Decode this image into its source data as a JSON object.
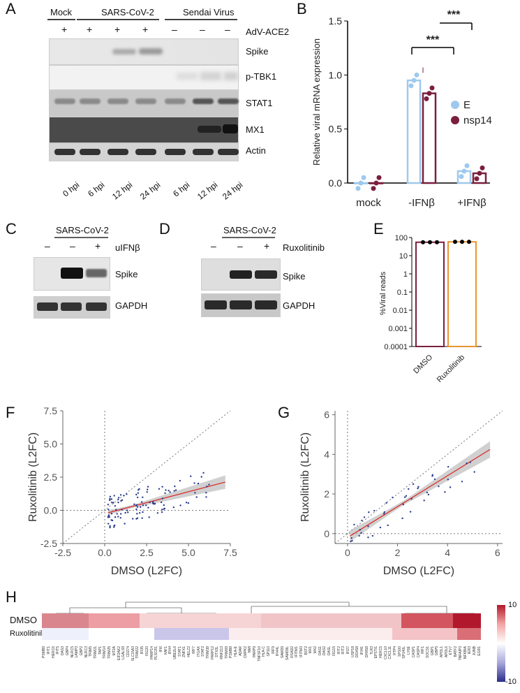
{
  "panels": {
    "A": {
      "letter": "A",
      "groups": [
        "Mock",
        "SARS-CoV-2",
        "Sendai Virus"
      ],
      "adv_label": "AdV-ACE2",
      "adv_marks": [
        "+",
        "+",
        "+",
        "+",
        "–",
        "–",
        "–"
      ],
      "bands": [
        "Spike",
        "p-TBK1",
        "STAT1",
        "MX1",
        "Actin"
      ],
      "timepoints": [
        "0 hpi",
        "6 hpi",
        "12 hpi",
        "24 hpi",
        "6 hpi",
        "12 hpi",
        "24 hpi"
      ]
    },
    "B": {
      "letter": "B",
      "chart_data": {
        "type": "bar",
        "categories": [
          "mock",
          "-IFNβ",
          "+IFNβ"
        ],
        "series": [
          {
            "name": "E",
            "values": [
              0.0,
              0.95,
              0.11
            ],
            "color": "#9ec9ee"
          },
          {
            "name": "nsp14",
            "values": [
              0.0,
              0.83,
              0.09
            ],
            "color": "#7a1f3d"
          }
        ],
        "ylabel": "Relative viral mRNA expression",
        "ylim": [
          0,
          1.5
        ],
        "yticks": [
          "0.0",
          "0.5",
          "1.0",
          "1.5"
        ],
        "significance": [
          "***",
          "***"
        ],
        "legend": "right"
      }
    },
    "C": {
      "letter": "C",
      "group": "SARS-CoV-2",
      "marks": [
        "–",
        "–",
        "+"
      ],
      "treatment": "uIFNβ",
      "bands": [
        "Spike",
        "GAPDH"
      ]
    },
    "D": {
      "letter": "D",
      "group": "SARS-CoV-2",
      "marks": [
        "–",
        "–",
        "+"
      ],
      "treatment": "Ruxolitinib",
      "bands": [
        "Spike",
        "GAPDH"
      ]
    },
    "E": {
      "letter": "E",
      "chart_data": {
        "type": "bar",
        "categories": [
          "DMSO",
          "Ruxolitinib"
        ],
        "values": [
          55,
          58
        ],
        "ylabel": "%Viral reads",
        "yscale": "log",
        "ylim": [
          0.0001,
          100
        ],
        "yticks": [
          "100",
          "10",
          "1",
          "0.1",
          "0.01",
          "0.001",
          "0.0001"
        ],
        "colors": [
          "#7a1f3d",
          "#e8962e"
        ]
      }
    },
    "F": {
      "letter": "F",
      "chart_data": {
        "type": "scatter",
        "xlabel": "DMSO (L2FC)",
        "ylabel": "Ruxolitinib (L2FC)",
        "xlim": [
          -2.5,
          7.5
        ],
        "ylim": [
          -2.5,
          7.5
        ],
        "xticks": [
          "-2.5",
          "0.0",
          "2.5",
          "5.0",
          "7.5"
        ],
        "yticks": [
          "-2.5",
          "0.0",
          "2.5",
          "5.0",
          "7.5"
        ],
        "fit": {
          "intercept": -0.25,
          "slope": 0.33
        }
      }
    },
    "G": {
      "letter": "G",
      "chart_data": {
        "type": "scatter",
        "xlabel": "DMSO (L2FC)",
        "ylabel": "Ruxolitinib (L2FC)",
        "xlim": [
          -0.5,
          6.2
        ],
        "ylim": [
          -0.5,
          6.2
        ],
        "xticks": [
          "0",
          "2",
          "4",
          "6"
        ],
        "yticks": [
          "0",
          "2",
          "4",
          "6"
        ],
        "fit": {
          "intercept": -0.2,
          "slope": 0.78
        }
      }
    },
    "H": {
      "letter": "H",
      "chart_data": {
        "type": "heatmap",
        "rows": [
          "DMSO",
          "Ruxolitinib"
        ],
        "colorbar": {
          "max": "10",
          "min": "-10"
        },
        "genes": [
          "PSMB9",
          "IFIT1",
          "HERC6",
          "IFIT5",
          "OAS3",
          "GBP4",
          "NLRC5",
          "LAMP3",
          "GBP2",
          "NLRC3",
          "TRIM5",
          "TRIM21",
          "TAP1",
          "TRIM14",
          "TRIM25",
          "MT2A",
          "EIF2AK2",
          "LGALS9",
          "CD274",
          "SLC15A3",
          "TRIM22",
          "IFI35",
          "ISG20",
          "PARP14",
          "PLSCR1",
          "IFI6",
          "XAF1",
          "IFI44",
          "UBE2L6",
          "STAT1",
          "ZNFX1",
          "HELZ2",
          "IRF7",
          "ITGAX",
          "STAT2",
          "TRIM38",
          "PARP12",
          "DTX3L",
          "RNF213",
          "TRIM69",
          "PSMB8",
          "HLA-E",
          "ADAR",
          "CMPK2",
          "NMI",
          "PARP9",
          "TNFSF10",
          "HLA-C",
          "SP110",
          "IRF9",
          "IFI44L",
          "SAMD9",
          "SAMD9L",
          "RSAD2",
          "IFITM1",
          "IFITM3",
          "BST2",
          "MX1",
          "MX2",
          "OAS1",
          "OAS2",
          "OASL",
          "ISG15",
          "IFIT2",
          "IFIT3",
          "IFI27",
          "USP18",
          "DDX58",
          "IFIH1",
          "DHX58",
          "TLR3",
          "EPSTI1",
          "HERC5",
          "CXCL10",
          "CXCL11",
          "RTP4",
          "SP100",
          "SP140L",
          "LY6E",
          "CASP1",
          "CASP4",
          "IRF1",
          "SOCS1",
          "GBP1",
          "GBP5",
          "APOL1",
          "APOL6",
          "ETV7",
          "BATF2",
          "TNFAIP3",
          "NFKBIA",
          "IER3",
          "JUNB",
          "EGR1"
        ]
      }
    }
  }
}
